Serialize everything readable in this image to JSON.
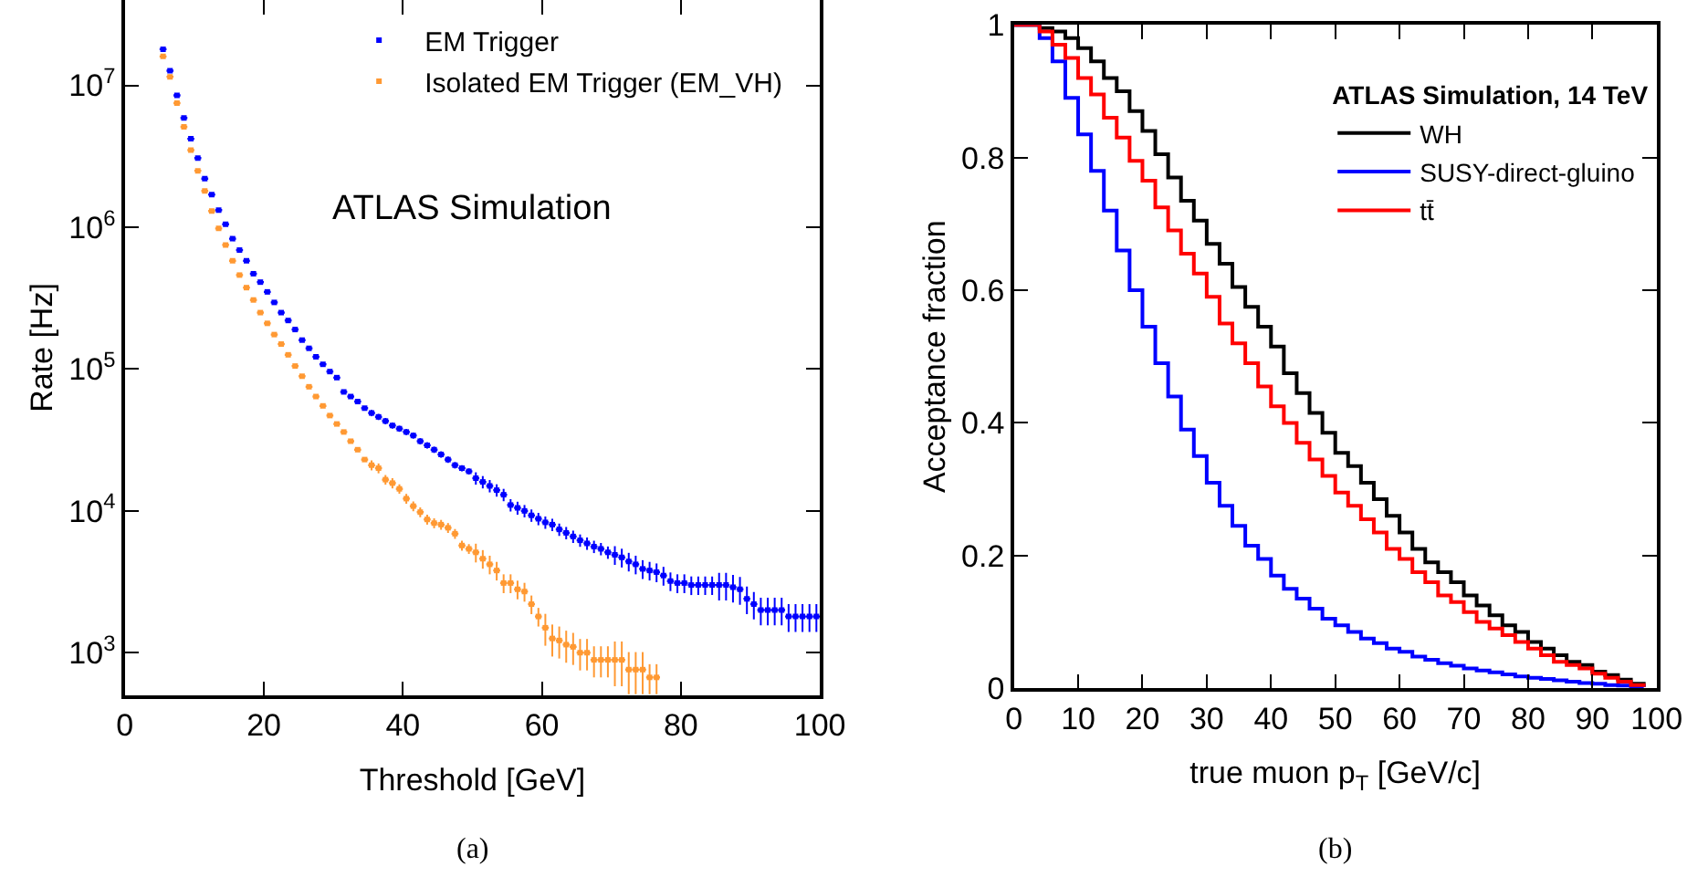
{
  "chart_data": [
    {
      "type": "scatter",
      "xlabel": "Threshold [GeV]",
      "ylabel": "Rate [Hz]",
      "log": "y",
      "xlim": [
        0,
        100
      ],
      "xticks": [
        0,
        20,
        40,
        60,
        80,
        100
      ],
      "ylim": [
        500,
        40000000
      ],
      "yticks": [
        {
          "value": 1000,
          "label": "10$^{3}$"
        },
        {
          "value": 10000,
          "label": "10$^{4}$"
        },
        {
          "value": 100000,
          "label": "10$^{5}$"
        },
        {
          "value": 1000000,
          "label": "10$^{6}$"
        },
        {
          "value": 10000000,
          "label": "10$^{7}$"
        }
      ],
      "legend": "top",
      "marker": "square",
      "annotations": [
        "ATLAS Simulation",
        "(a)"
      ],
      "series": [
        {
          "name": "EM Trigger",
          "color": "#0000ff",
          "x": [
            5.5,
            6.5,
            7.5,
            8.5,
            9.5,
            10.5,
            11.5,
            12.5,
            13.5,
            14.5,
            15.5,
            16.5,
            17.5,
            18.5,
            19.5,
            20.5,
            21.5,
            22.5,
            23.5,
            24.5,
            25.5,
            26.5,
            27.5,
            28.5,
            29.5,
            30.5,
            31.5,
            32.5,
            33.5,
            34.5,
            35.5,
            36.5,
            37.5,
            38.5,
            39.5,
            40.5,
            41.5,
            42.5,
            43.5,
            44.5,
            45.5,
            46.5,
            47.5,
            48.5,
            49.5,
            50.5,
            51.5,
            52.5,
            53.5,
            54.5,
            55.5,
            56.5,
            57.5,
            58.5,
            59.5,
            60.5,
            61.5,
            62.5,
            63.5,
            64.5,
            65.5,
            66.5,
            67.5,
            68.5,
            69.5,
            70.5,
            71.5,
            72.5,
            73.5,
            74.5,
            75.5,
            76.5,
            77.5,
            78.5,
            79.5,
            80.5,
            81.5,
            82.5,
            83.5,
            84.5,
            85.5,
            86.5,
            87.5,
            88.5,
            89.5,
            90.5,
            91.5,
            92.5,
            93.5,
            94.5,
            95.5,
            96.5,
            97.5,
            98.5,
            99.5
          ],
          "values": [
            18000000,
            12700000,
            8500000,
            5900000,
            4200000,
            3070000,
            2200000,
            1700000,
            1320000,
            1050000,
            830000,
            690000,
            580000,
            470000,
            410000,
            350000,
            295000,
            250000,
            220000,
            190000,
            160000,
            140000,
            122000,
            108000,
            96000,
            87000,
            69000,
            64000,
            59000,
            53000,
            49000,
            46000,
            43000,
            40000,
            38000,
            36000,
            34000,
            31000,
            29000,
            27000,
            25000,
            23000,
            21000,
            20000,
            19000,
            17000,
            16000,
            15000,
            14000,
            13000,
            11000,
            10500,
            10000,
            9300,
            8800,
            8300,
            8000,
            7400,
            7000,
            6600,
            6200,
            5900,
            5600,
            5400,
            5100,
            4900,
            4700,
            4400,
            4200,
            3900,
            3800,
            3700,
            3500,
            3200,
            3100,
            3100,
            3000,
            3000,
            3000,
            3000,
            3000,
            3000,
            2900,
            2800,
            2400,
            2200,
            2000,
            2000,
            2000,
            2000,
            1800,
            1800,
            1800,
            1800,
            1800
          ],
          "errors": [
            null,
            null,
            null,
            null,
            null,
            null,
            null,
            null,
            null,
            null,
            null,
            null,
            null,
            null,
            null,
            null,
            null,
            null,
            null,
            null,
            null,
            null,
            null,
            null,
            null,
            null,
            null,
            null,
            null,
            null,
            2500,
            2300,
            2200,
            2000,
            1900,
            1800,
            1700,
            1600,
            1500,
            1400,
            1300,
            1200,
            1100,
            1000,
            950,
            1700,
            1600,
            1500,
            1400,
            1300,
            1100,
            1100,
            1000,
            930,
            880,
            830,
            800,
            740,
            700,
            660,
            620,
            590,
            560,
            540,
            510,
            740,
            710,
            660,
            630,
            590,
            570,
            560,
            530,
            480,
            470,
            470,
            450,
            450,
            450,
            450,
            660,
            660,
            640,
            620,
            530,
            480,
            440,
            440,
            440,
            440,
            400,
            400,
            400,
            400,
            400
          ],
          "xerrors": [
            0.5,
            0.5,
            0.5,
            0.5,
            0.5,
            0.5,
            0.5,
            0.5,
            0.5,
            0.5,
            0.5,
            0.5,
            0.5,
            0.5,
            0.5,
            0.5,
            0.5,
            0.5,
            0.5,
            0.5,
            0.5,
            0.5,
            0.5,
            0.5,
            0.5,
            0.5,
            0.5,
            0.5,
            0.5,
            0.5,
            0.5,
            0.5,
            0.5,
            0.5,
            0.5,
            0.5,
            0.5,
            0.5,
            0.5,
            0.5,
            0.5,
            0.5,
            0.5,
            0.5,
            0.5,
            0.5,
            0.5,
            0.5,
            0.5,
            0.5,
            0.5,
            0.5,
            0.5,
            0.5,
            0.5,
            0.5,
            0.5,
            0.5,
            0.5,
            0.5,
            0.5,
            0.5,
            0.5,
            0.5,
            0.5,
            0.5,
            0.5,
            0.5,
            0.5,
            0.5,
            0.5,
            0.5,
            0.5,
            0.5,
            0.5,
            0.5,
            0.5,
            0.5,
            0.5,
            0.5,
            0.5,
            0.5,
            0.5,
            0.5,
            0.5,
            0.5,
            0.5,
            0.5,
            0.5,
            0.5,
            0.5,
            0.5,
            0.5,
            0.5,
            0.5
          ]
        },
        {
          "name": "Isolated EM Trigger (EM_VH)",
          "color": "#ff9933",
          "x": [
            5.5,
            6.5,
            7.5,
            8.5,
            9.5,
            10.5,
            11.5,
            12.5,
            13.5,
            14.5,
            15.5,
            16.5,
            17.5,
            18.5,
            19.5,
            20.5,
            21.5,
            22.5,
            23.5,
            24.5,
            25.5,
            26.5,
            27.5,
            28.5,
            29.5,
            30.5,
            31.5,
            32.5,
            33.5,
            34.5,
            35.5,
            36.5,
            37.5,
            38.5,
            39.5,
            40.5,
            41.5,
            42.5,
            43.5,
            44.5,
            45.5,
            46.5,
            47.5,
            48.5,
            49.5,
            50.5,
            51.5,
            52.5,
            53.5,
            54.5,
            55.5,
            56.5,
            57.5,
            58.5,
            59.5,
            60.5,
            61.5,
            62.5,
            63.5,
            64.5,
            65.5,
            66.5,
            67.5,
            68.5,
            69.5,
            70.5,
            71.5,
            72.5,
            73.5,
            74.5,
            75.5,
            76.5
          ],
          "values": [
            16000000,
            11500000,
            7500000,
            5100000,
            3500000,
            2500000,
            1800000,
            1300000,
            980000,
            750000,
            580000,
            460000,
            375000,
            307000,
            250000,
            210000,
            175000,
            150000,
            126000,
            105000,
            89000,
            75000,
            64000,
            55000,
            47000,
            41000,
            36000,
            31000,
            27000,
            23000,
            21000,
            20000,
            16600,
            15700,
            14300,
            12200,
            10800,
            9800,
            8700,
            8200,
            8000,
            7600,
            6900,
            5700,
            5400,
            5100,
            4600,
            4200,
            3800,
            3100,
            3100,
            2800,
            2700,
            2200,
            1800,
            1500,
            1260,
            1220,
            1140,
            1100,
            1000,
            1000,
            890,
            890,
            890,
            890,
            890,
            760,
            760,
            760,
            670,
            670
          ],
          "errors": [
            null,
            null,
            null,
            null,
            null,
            null,
            null,
            null,
            null,
            null,
            null,
            null,
            null,
            null,
            null,
            null,
            null,
            null,
            null,
            null,
            null,
            null,
            null,
            null,
            null,
            null,
            null,
            null,
            null,
            null,
            1700,
            1600,
            1300,
            1300,
            1100,
            980,
            860,
            780,
            700,
            660,
            640,
            610,
            550,
            460,
            430,
            770,
            690,
            630,
            570,
            470,
            470,
            420,
            410,
            330,
            270,
            380,
            320,
            310,
            290,
            280,
            250,
            250,
            220,
            220,
            220,
            310,
            310,
            250,
            250,
            250,
            160,
            160
          ],
          "xerrors": [
            0.5,
            0.5,
            0.5,
            0.5,
            0.5,
            0.5,
            0.5,
            0.5,
            0.5,
            0.5,
            0.5,
            0.5,
            0.5,
            0.5,
            0.5,
            0.5,
            0.5,
            0.5,
            0.5,
            0.5,
            0.5,
            0.5,
            0.5,
            0.5,
            0.5,
            0.5,
            0.5,
            0.5,
            0.5,
            0.5,
            0.5,
            0.5,
            0.5,
            0.5,
            0.5,
            0.5,
            0.5,
            0.5,
            0.5,
            0.5,
            0.5,
            0.5,
            0.5,
            0.5,
            0.5,
            0.5,
            0.5,
            0.5,
            0.5,
            0.5,
            0.5,
            0.5,
            0.5,
            0.5,
            0.5,
            0.5,
            0.5,
            0.5,
            0.5,
            0.5,
            0.5,
            0.5,
            0.5,
            0.5,
            0.5,
            0.5,
            0.5,
            0.5,
            0.5,
            0.5,
            0.5,
            0.5
          ]
        }
      ]
    },
    {
      "type": "step",
      "xlabel": "true muon p$_{T}$ [GeV/c]",
      "ylabel": "Acceptance fraction",
      "xlim": [
        0,
        100
      ],
      "xticks": [
        0,
        10,
        20,
        30,
        40,
        50,
        60,
        70,
        80,
        90,
        100
      ],
      "ylim": [
        0,
        1
      ],
      "yticks": [
        0,
        0.2,
        0.4,
        0.6,
        0.8,
        1
      ],
      "legend": "top right",
      "legend_title": "ATLAS Simulation, 14 TeV",
      "annotations": [
        "(b)"
      ],
      "x": [
        0,
        2,
        4,
        6,
        8,
        10,
        12,
        14,
        16,
        18,
        20,
        22,
        24,
        26,
        28,
        30,
        32,
        34,
        36,
        38,
        40,
        42,
        44,
        46,
        48,
        50,
        52,
        54,
        56,
        58,
        60,
        62,
        64,
        66,
        68,
        70,
        72,
        74,
        76,
        78,
        80,
        82,
        84,
        86,
        88,
        90,
        92,
        94,
        96,
        98
      ],
      "series": [
        {
          "name": "WH",
          "color": "#000000",
          "values": [
            1,
            1,
            0.995,
            0.99,
            0.98,
            0.965,
            0.945,
            0.92,
            0.9,
            0.87,
            0.84,
            0.805,
            0.77,
            0.735,
            0.705,
            0.67,
            0.64,
            0.605,
            0.575,
            0.545,
            0.515,
            0.475,
            0.445,
            0.415,
            0.385,
            0.355,
            0.335,
            0.31,
            0.285,
            0.26,
            0.235,
            0.21,
            0.19,
            0.175,
            0.16,
            0.14,
            0.125,
            0.11,
            0.095,
            0.085,
            0.07,
            0.06,
            0.05,
            0.04,
            0.035,
            0.025,
            0.02,
            0.013,
            0.007,
            0.002
          ]
        },
        {
          "name": "SUSY-direct-gluino",
          "color": "#0000ff",
          "values": [
            1,
            1,
            0.98,
            0.945,
            0.89,
            0.835,
            0.78,
            0.72,
            0.66,
            0.6,
            0.545,
            0.49,
            0.44,
            0.39,
            0.35,
            0.31,
            0.275,
            0.245,
            0.215,
            0.195,
            0.17,
            0.15,
            0.135,
            0.12,
            0.105,
            0.095,
            0.085,
            0.075,
            0.068,
            0.06,
            0.055,
            0.048,
            0.043,
            0.038,
            0.034,
            0.03,
            0.027,
            0.024,
            0.021,
            0.018,
            0.016,
            0.014,
            0.012,
            0.01,
            0.008,
            0.007,
            0.005,
            0.004,
            0.003,
            0.002
          ]
        },
        {
          "name": "tt̄",
          "color": "#ff0000",
          "values": [
            1,
            1,
            0.99,
            0.97,
            0.95,
            0.92,
            0.895,
            0.86,
            0.83,
            0.795,
            0.765,
            0.725,
            0.69,
            0.655,
            0.625,
            0.59,
            0.55,
            0.52,
            0.49,
            0.455,
            0.425,
            0.4,
            0.37,
            0.345,
            0.32,
            0.295,
            0.275,
            0.255,
            0.235,
            0.21,
            0.195,
            0.175,
            0.16,
            0.14,
            0.13,
            0.115,
            0.1,
            0.09,
            0.08,
            0.07,
            0.06,
            0.05,
            0.04,
            0.035,
            0.03,
            0.022,
            0.016,
            0.01,
            0.005,
            0.002
          ]
        }
      ]
    }
  ]
}
